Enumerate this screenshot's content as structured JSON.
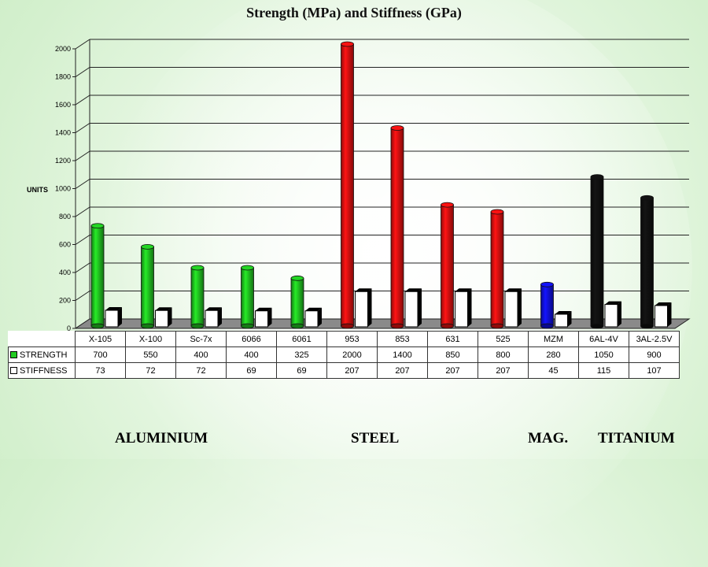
{
  "title": "Strength (MPa) and Stiffness  (GPa)",
  "ylabel": "UNITS",
  "groups": {
    "aluminium": "ALUMINIUM",
    "steel": "STEEL",
    "mag": "MAG.",
    "titanium": "TITANIUM"
  },
  "table": {
    "strength_label": "STRENGTH",
    "stiffness_label": "STIFFNESS"
  },
  "chart_data": {
    "type": "bar",
    "title": "Strength (MPa) and Stiffness  (GPa)",
    "ylabel": "UNITS",
    "xlabel": "",
    "ylim": [
      0,
      2000
    ],
    "yticks": [
      0,
      200,
      400,
      600,
      800,
      1000,
      1200,
      1400,
      1600,
      1800,
      2000
    ],
    "grid": true,
    "categories": [
      "X-105",
      "X-100",
      "Sc-7x",
      "6066",
      "6061",
      "953",
      "853",
      "631",
      "525",
      "MZM",
      "6AL-4V",
      "3AL-2.5V"
    ],
    "bar_colors": [
      "#22cc22",
      "#22cc22",
      "#22cc22",
      "#22cc22",
      "#22cc22",
      "#ee1111",
      "#ee1111",
      "#ee1111",
      "#ee1111",
      "#1111ee",
      "#111111",
      "#111111"
    ],
    "series": [
      {
        "name": "STRENGTH",
        "values": [
          700,
          550,
          400,
          400,
          325,
          2000,
          1400,
          850,
          800,
          280,
          1050,
          900
        ]
      },
      {
        "name": "STIFFNESS",
        "values": [
          73,
          72,
          72,
          69,
          69,
          207,
          207,
          207,
          207,
          45,
          115,
          107
        ]
      }
    ]
  }
}
